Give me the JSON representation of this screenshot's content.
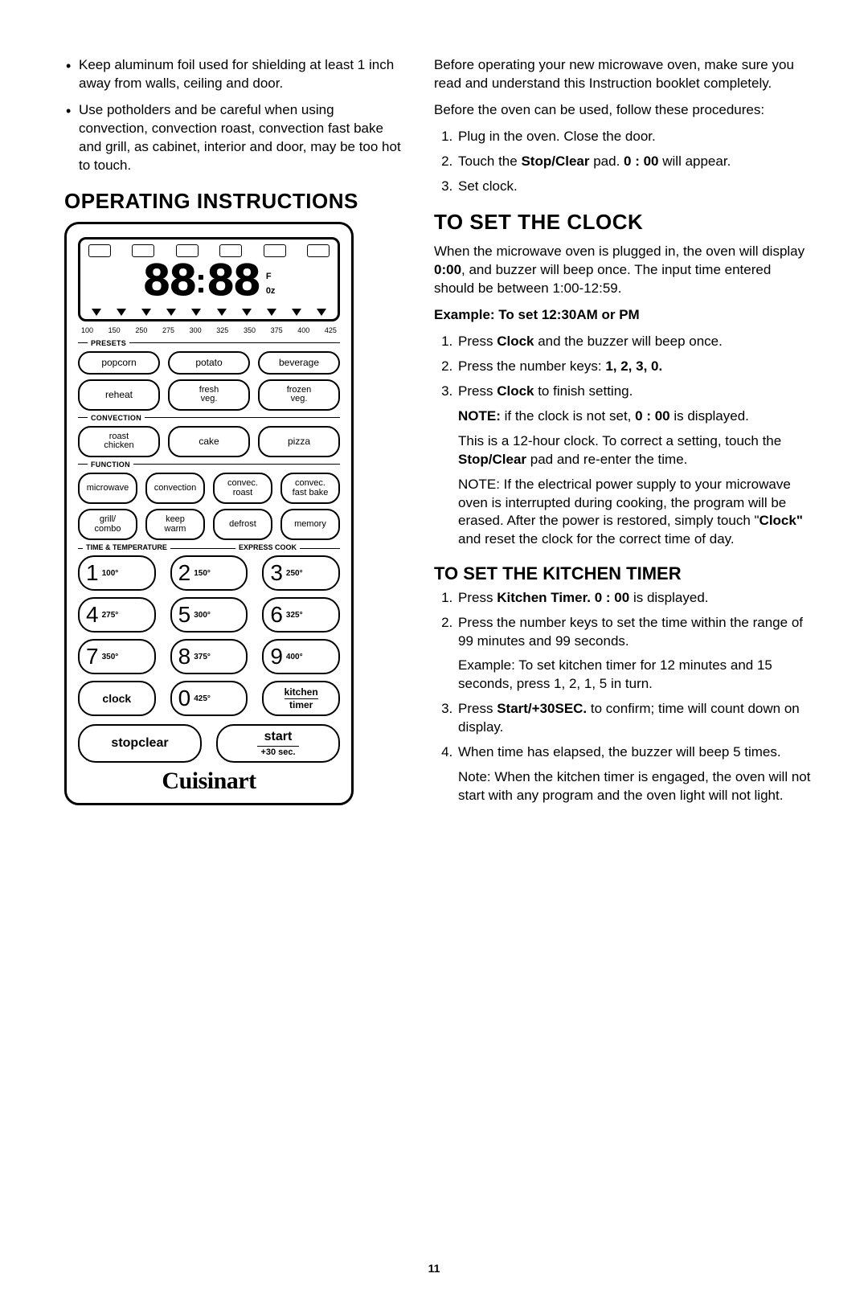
{
  "left": {
    "bullets": [
      "Keep aluminum foil used for shielding at least 1 inch away from walls, ceiling and door.",
      "Use potholders and be careful when using convection, convection roast, convection fast bake and grill, as cabinet, interior and door, may be too hot to touch."
    ],
    "heading": "OPERATING INSTRUCTIONS"
  },
  "panel": {
    "digits": "88:88",
    "side_f": "F",
    "side_oz": "0z",
    "temp_scale": [
      "100",
      "150",
      "250",
      "275",
      "300",
      "325",
      "350",
      "375",
      "400",
      "425"
    ],
    "sections": {
      "presets": {
        "label": "PRESETS",
        "rows": [
          [
            "popcorn",
            "potato",
            "beverage"
          ],
          [
            "reheat",
            "fresh\nveg.",
            "frozen\nveg."
          ]
        ]
      },
      "convection": {
        "label": "CONVECTION",
        "row": [
          "roast\nchicken",
          "cake",
          "pizza"
        ]
      },
      "function": {
        "label": "FUNCTION",
        "rows": [
          [
            "microwave",
            "convection",
            "convec.\nroast",
            "convec.\nfast bake"
          ],
          [
            "grill/\ncombo",
            "keep\nwarm",
            "defrost",
            "memory"
          ]
        ]
      },
      "time_temp": {
        "label1": "TIME & TEMPERATURE",
        "label2": "EXPRESS COOK"
      }
    },
    "keypad": [
      [
        {
          "n": "1",
          "t": "100°"
        },
        {
          "n": "2",
          "t": "150°"
        },
        {
          "n": "3",
          "t": "250°"
        }
      ],
      [
        {
          "n": "4",
          "t": "275°"
        },
        {
          "n": "5",
          "t": "300°"
        },
        {
          "n": "6",
          "t": "325°"
        }
      ],
      [
        {
          "n": "7",
          "t": "350°"
        },
        {
          "n": "8",
          "t": "375°"
        },
        {
          "n": "9",
          "t": "400°"
        }
      ]
    ],
    "keypad_bottom": {
      "clock": "clock",
      "zero_n": "0",
      "zero_t": "425°",
      "kitchen_timer_l1": "kitchen",
      "kitchen_timer_l2": "timer"
    },
    "bottom": {
      "stopclear": "stopclear",
      "start": "start",
      "start_sub": "+30 sec."
    },
    "brand": "Cuisinart"
  },
  "right": {
    "intro1": "Before operating your new microwave oven, make sure you read and understand this Instruction booklet completely.",
    "intro2": "Before the oven can be used, follow these procedures:",
    "setup_steps": [
      "Plug in the oven. Close the door.",
      {
        "pre": "Touch the ",
        "b": "Stop/Clear",
        "mid": " pad. ",
        "b2": "0 : 00",
        "post": " will appear."
      },
      "Set clock."
    ],
    "clock": {
      "heading": "TO SET THE CLOCK",
      "p1a": "When the microwave oven is plugged in, the oven will display ",
      "p1b": "0:00",
      "p1c": ", and buzzer will beep once. The input time entered should be between 1:00-12:59.",
      "example": "Example: To set 12:30AM or PM",
      "steps": [
        {
          "pre": "Press ",
          "b": "Clock",
          "post": " and the buzzer will beep once."
        },
        {
          "pre": "Press the number keys: ",
          "b": "1, 2, 3, 0.",
          "post": ""
        },
        {
          "pre": "Press ",
          "b": "Clock",
          "post": " to finish setting.",
          "subs": [
            {
              "b": "NOTE:",
              "post": " if the clock is not set, ",
              "b2": "0 : 00",
              "post2": " is displayed."
            },
            {
              "pre": "This is a 12-hour clock. To correct a setting, touch the ",
              "b": "Stop/Clear",
              "post": " pad and re-enter the time."
            },
            {
              "pre": "NOTE: If the electrical power supply to your microwave oven is interrupted during cooking, the program will be erased. After the power is restored, simply touch \"",
              "b": "Clock\"",
              "post": " and reset the clock for the correct time of day."
            }
          ]
        }
      ]
    },
    "timer": {
      "heading": "TO SET THE KITCHEN TIMER",
      "steps": [
        {
          "pre": "Press ",
          "b": "Kitchen Timer. 0 : 00",
          "post": " is displayed."
        },
        {
          "text": "Press the number keys to set the time within the range of 99 minutes and 99 seconds.",
          "sub": "Example: To set kitchen timer for 12 minutes and 15 seconds, press 1, 2, 1, 5 in turn."
        },
        {
          "pre": "Press ",
          "b": "Start/+30SEC.",
          "post": " to confirm; time will count down on display."
        },
        {
          "text": "When time has elapsed, the buzzer will beep 5 times.",
          "sub": "Note: When the kitchen timer is engaged, the oven will not start with any program and the oven light will not light."
        }
      ]
    }
  },
  "page_number": "11"
}
